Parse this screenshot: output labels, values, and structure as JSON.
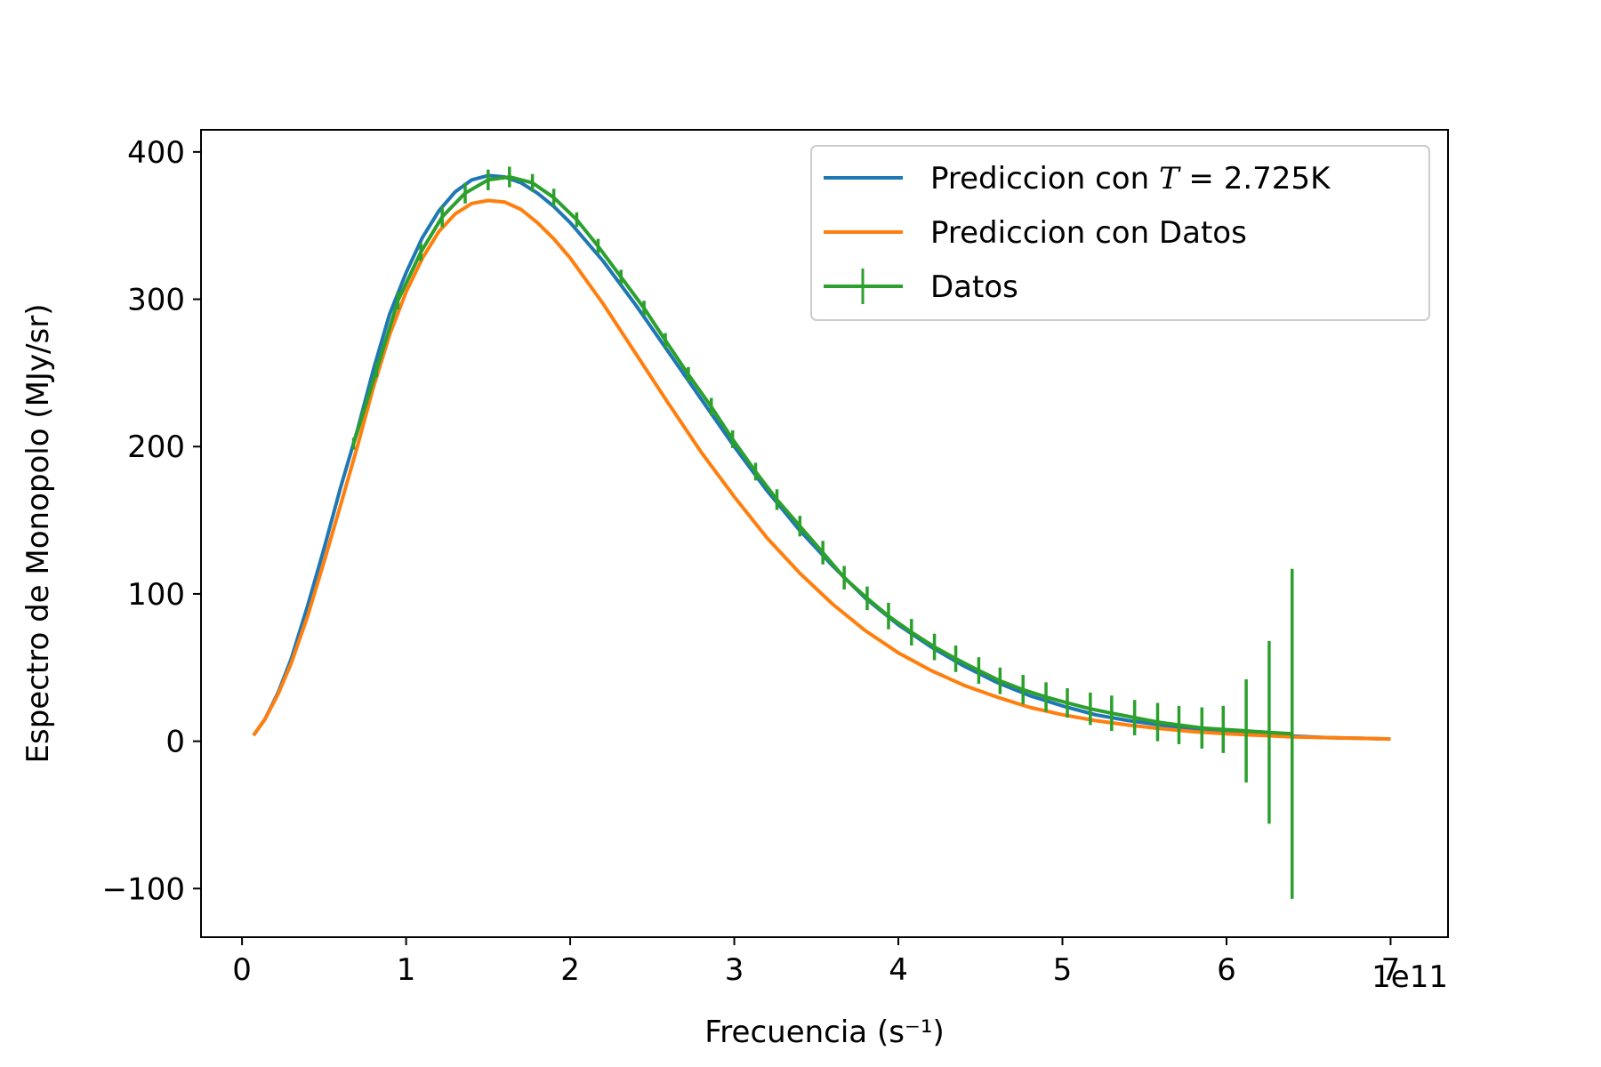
{
  "chart_data": {
    "type": "line",
    "xlabel": "Frecuencia (s⁻¹)",
    "ylabel": "Espectro de Monopolo (MJy/sr)",
    "x_offset_label": "1e11",
    "xlim": [
      -0.25,
      7.35
    ],
    "ylim": [
      -133,
      415
    ],
    "x_ticks": [
      0,
      1,
      2,
      3,
      4,
      5,
      6,
      7
    ],
    "x_tick_labels": [
      "0",
      "1",
      "2",
      "3",
      "4",
      "5",
      "6",
      "7"
    ],
    "y_ticks": [
      -100,
      0,
      100,
      200,
      300,
      400
    ],
    "y_tick_labels": [
      "−100",
      "0",
      "100",
      "200",
      "300",
      "400"
    ],
    "grid": false,
    "legend_position": "top-right",
    "series": [
      {
        "name": "Prediccion con T = 2.725K",
        "legend_prefix": "Prediccion con ",
        "legend_math": "T",
        "legend_suffix": " = 2.725K",
        "color": "#1f77b4",
        "kind": "line",
        "x": [
          0.07,
          0.14,
          0.22,
          0.3,
          0.4,
          0.5,
          0.6,
          0.7,
          0.8,
          0.9,
          1.0,
          1.1,
          1.2,
          1.3,
          1.4,
          1.5,
          1.6,
          1.7,
          1.8,
          1.9,
          2.0,
          2.2,
          2.4,
          2.6,
          2.8,
          3.0,
          3.2,
          3.4,
          3.6,
          3.8,
          4.0,
          4.2,
          4.4,
          4.6,
          4.8,
          5.0,
          5.2,
          5.4,
          5.6,
          5.8,
          6.0,
          6.2,
          6.4,
          6.6,
          6.8,
          7.0
        ],
        "y": [
          4,
          15,
          33,
          56,
          92,
          131,
          172,
          210,
          252,
          290,
          318,
          342,
          360,
          373,
          381,
          384,
          383,
          379,
          372,
          363,
          352,
          326,
          296,
          264,
          232,
          200,
          170,
          143,
          119,
          97,
          79,
          64,
          51,
          40,
          31,
          24,
          18,
          14,
          11,
          8,
          6,
          5,
          3.5,
          2.5,
          2,
          1.5
        ]
      },
      {
        "name": "Prediccion con Datos",
        "color": "#ff7f0e",
        "kind": "line",
        "x": [
          0.07,
          0.14,
          0.22,
          0.3,
          0.4,
          0.5,
          0.6,
          0.7,
          0.8,
          0.9,
          1.0,
          1.1,
          1.2,
          1.3,
          1.4,
          1.5,
          1.6,
          1.7,
          1.8,
          1.9,
          2.0,
          2.2,
          2.4,
          2.6,
          2.8,
          3.0,
          3.2,
          3.4,
          3.6,
          3.8,
          4.0,
          4.2,
          4.4,
          4.6,
          4.8,
          5.0,
          5.2,
          5.4,
          5.6,
          5.8,
          6.0,
          6.2,
          6.4,
          6.6,
          6.8,
          7.0
        ],
        "y": [
          4,
          15,
          32,
          53,
          85,
          122,
          160,
          199,
          240,
          276,
          305,
          328,
          346,
          358,
          365,
          367,
          366,
          361,
          352,
          341,
          328,
          297,
          263,
          229,
          196,
          166,
          138,
          114,
          93,
          75,
          60,
          48,
          38,
          30,
          23,
          18,
          14,
          11,
          8.5,
          6.5,
          5,
          4,
          3,
          2.5,
          2,
          1.5
        ]
      },
      {
        "name": "Datos",
        "color": "#2ca02c",
        "kind": "errorbar",
        "x": [
          0.68,
          0.82,
          0.95,
          1.09,
          1.22,
          1.36,
          1.5,
          1.63,
          1.77,
          1.9,
          2.04,
          2.17,
          2.31,
          2.45,
          2.58,
          2.72,
          2.86,
          2.99,
          3.13,
          3.26,
          3.4,
          3.54,
          3.67,
          3.81,
          3.94,
          4.08,
          4.22,
          4.35,
          4.49,
          4.62,
          4.76,
          4.9,
          5.03,
          5.17,
          5.3,
          5.44,
          5.58,
          5.71,
          5.85,
          5.98,
          6.12,
          6.26,
          6.4
        ],
        "y": [
          202,
          252,
          299,
          332,
          356,
          372,
          381,
          383,
          379,
          369,
          354,
          336,
          315,
          294,
          272,
          249,
          227,
          205,
          183,
          164,
          146,
          128,
          111,
          97,
          85,
          74,
          64,
          56,
          48,
          41,
          35,
          30,
          26,
          22,
          19,
          16,
          13,
          11,
          9,
          8,
          7,
          6,
          5
        ],
        "yerr": [
          4,
          5,
          6,
          6,
          7,
          7,
          7,
          7,
          6,
          6,
          5,
          5,
          5,
          5,
          5,
          5,
          6,
          6,
          6,
          7,
          7,
          8,
          8,
          8,
          9,
          9,
          9,
          9,
          9,
          9,
          10,
          10,
          10,
          11,
          12,
          12,
          13,
          13,
          14,
          16,
          35,
          62,
          112
        ]
      }
    ]
  }
}
